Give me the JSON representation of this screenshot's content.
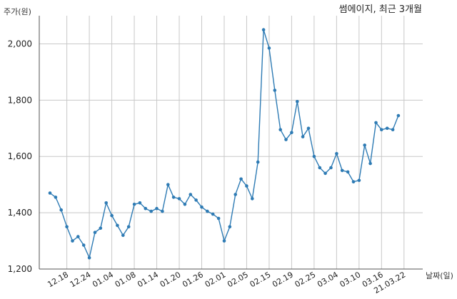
{
  "chart_data": {
    "type": "line",
    "title": "썸에이지, 최근 3개월",
    "ylabel": "주가(원)",
    "xlabel": "날짜(일)",
    "ylim": [
      1200,
      2100
    ],
    "yticks": [
      1200,
      1400,
      1600,
      1800,
      2000
    ],
    "ytick_labels": [
      "1,200",
      "1,400",
      "1,600",
      "1,800",
      "2,000"
    ],
    "grid": true,
    "line_color": "#2e7bb4",
    "xtick_labels": [
      "12.18",
      "12.24",
      "01.04",
      "01.08",
      "01.14",
      "01.20",
      "01.26",
      "02.01",
      "02.05",
      "02.15",
      "02.19",
      "02.25",
      "03.04",
      "03.10",
      "03.16",
      "21.03.22"
    ],
    "xtick_indices": [
      3,
      7,
      11,
      15,
      19,
      23,
      27,
      31,
      35,
      39,
      43,
      47,
      51,
      55,
      59,
      63
    ],
    "series": [
      {
        "values": [
          1470,
          1455,
          1410,
          1350,
          1300,
          1315,
          1285,
          1240,
          1330,
          1345,
          1435,
          1390,
          1355,
          1320,
          1350,
          1430,
          1435,
          1415,
          1405,
          1415,
          1405,
          1500,
          1455,
          1450,
          1430,
          1465,
          1445,
          1420,
          1405,
          1395,
          1380,
          1300,
          1350,
          1465,
          1520,
          1495,
          1450,
          1580,
          2050,
          1985,
          1835,
          1695,
          1660,
          1685,
          1795,
          1670,
          1700,
          1600,
          1560,
          1540,
          1560,
          1610,
          1550,
          1545,
          1510,
          1515,
          1640,
          1575,
          1720,
          1695,
          1700,
          1695,
          1745
        ]
      }
    ]
  }
}
